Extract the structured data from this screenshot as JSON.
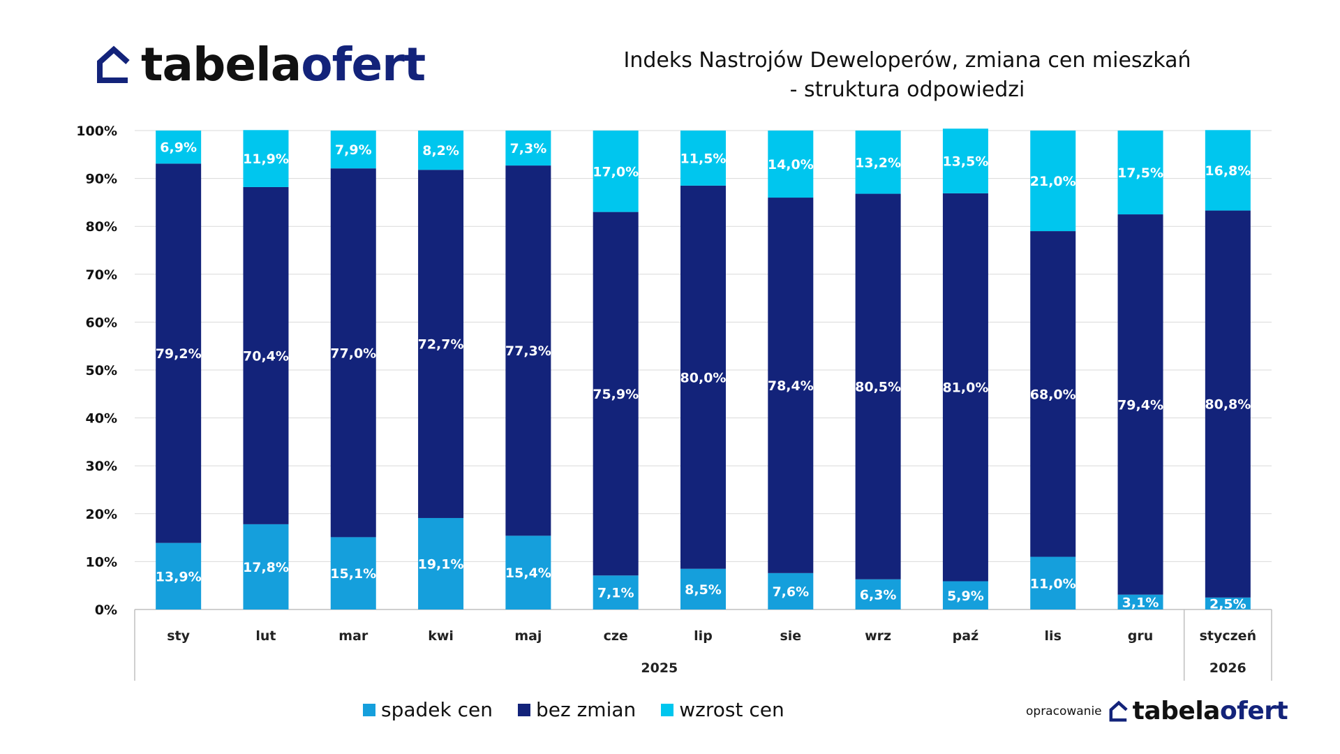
{
  "brand": {
    "name_part1": "tabela",
    "name_part2": "ofert"
  },
  "footer": {
    "prefix": "opracowanie"
  },
  "colors": {
    "spadek": "#159fdc",
    "bez": "#13237a",
    "wzrost": "#00c6ee",
    "brand_dark": "#13237a"
  },
  "chart_data": {
    "type": "bar",
    "stacked": true,
    "title_line1": "Indeks Nastrojów Deweloperów, zmiana cen mieszkań",
    "title_line2": "- struktura odpowiedzi",
    "categories": [
      "sty",
      "lut",
      "mar",
      "kwi",
      "maj",
      "cze",
      "lip",
      "sie",
      "wrz",
      "paź",
      "lis",
      "gru",
      "styczeń"
    ],
    "year_groups": [
      {
        "label": "2025",
        "count": 12
      },
      {
        "label": "2026",
        "count": 1
      }
    ],
    "y_ticks": [
      "0%",
      "10%",
      "20%",
      "30%",
      "40%",
      "50%",
      "60%",
      "70%",
      "80%",
      "90%",
      "100%"
    ],
    "ylim": [
      0,
      100
    ],
    "legend_position": "bottom",
    "series": [
      {
        "name": "spadek cen",
        "color": "#159fdc",
        "values": [
          13.9,
          17.8,
          15.1,
          19.1,
          15.4,
          7.1,
          8.5,
          7.6,
          6.3,
          5.9,
          11.0,
          3.1,
          2.5
        ],
        "labels": [
          "13,9%",
          "17,8%",
          "15,1%",
          "19,1%",
          "15,4%",
          "7,1%",
          "8,5%",
          "7,6%",
          "6,3%",
          "5,9%",
          "11,0%",
          "3,1%",
          "2,5%"
        ]
      },
      {
        "name": "bez zmian",
        "color": "#13237a",
        "values": [
          79.2,
          70.4,
          77.0,
          72.7,
          77.3,
          75.9,
          80.0,
          78.4,
          80.5,
          81.0,
          68.0,
          79.4,
          80.8
        ],
        "labels": [
          "79,2%",
          "70,4%",
          "77,0%",
          "72,7%",
          "77,3%",
          "75,9%",
          "80,0%",
          "78,4%",
          "80,5%",
          "81,0%",
          "68,0%",
          "79,4%",
          "80,8%"
        ]
      },
      {
        "name": "wzrost cen",
        "color": "#00c6ee",
        "values": [
          6.9,
          11.9,
          7.9,
          8.2,
          7.3,
          17.0,
          11.5,
          14.0,
          13.2,
          13.5,
          21.0,
          17.5,
          16.8
        ],
        "labels": [
          "6,9%",
          "11,9%",
          "7,9%",
          "8,2%",
          "7,3%",
          "17,0%",
          "11,5%",
          "14,0%",
          "13,2%",
          "13,5%",
          "21,0%",
          "17,5%",
          "16,8%"
        ]
      }
    ]
  }
}
